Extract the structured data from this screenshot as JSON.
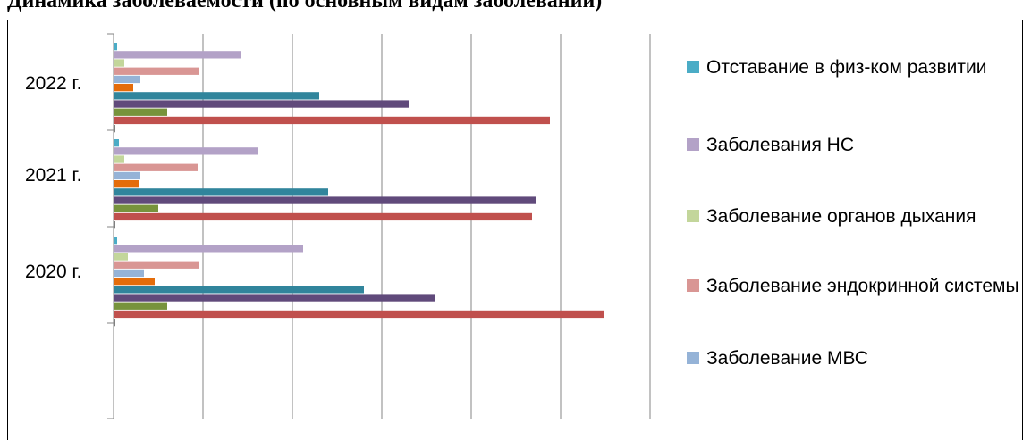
{
  "title": "Динамика заболеваемости (по основным видам заболеваний)",
  "chart_data": {
    "type": "bar",
    "orientation": "horizontal",
    "categories": [
      "2020 г.",
      "2021 г.",
      "2022 г."
    ],
    "xlim": [
      0,
      30
    ],
    "grid": true,
    "legend_position": "right",
    "series": [
      {
        "name": "Отставание в физ-ком развитии",
        "color": "#4bacc6",
        "values": [
          0.2,
          0.3,
          0.2
        ]
      },
      {
        "name": "Заболевания НС",
        "color": "#b3a2c7",
        "values": [
          10.6,
          8.1,
          7.1
        ]
      },
      {
        "name": "Заболевание органов дыхания",
        "color": "#c3d69b",
        "values": [
          0.8,
          0.6,
          0.6
        ]
      },
      {
        "name": "Заболевание эндокринной системы",
        "color": "#d99694",
        "values": [
          4.8,
          4.7,
          4.8
        ]
      },
      {
        "name": "Заболевание МВС",
        "color": "#95b3d7",
        "values": [
          1.7,
          1.5,
          1.5
        ]
      },
      {
        "name": "",
        "color": "#e46c0a",
        "values": [
          2.3,
          1.4,
          1.1
        ]
      },
      {
        "name": "",
        "color": "#31859c",
        "values": [
          14.0,
          12.0,
          11.5
        ]
      },
      {
        "name": "",
        "color": "#604a7b",
        "values": [
          18.0,
          23.6,
          16.5
        ]
      },
      {
        "name": "",
        "color": "#77933c",
        "values": [
          3.0,
          2.5,
          3.0
        ]
      },
      {
        "name": "",
        "color": "#c0504d",
        "values": [
          27.4,
          23.4,
          24.4
        ]
      },
      {
        "name": "",
        "color": "#7f7f7f",
        "values": [
          0.1,
          0.1,
          0.1
        ]
      }
    ]
  }
}
